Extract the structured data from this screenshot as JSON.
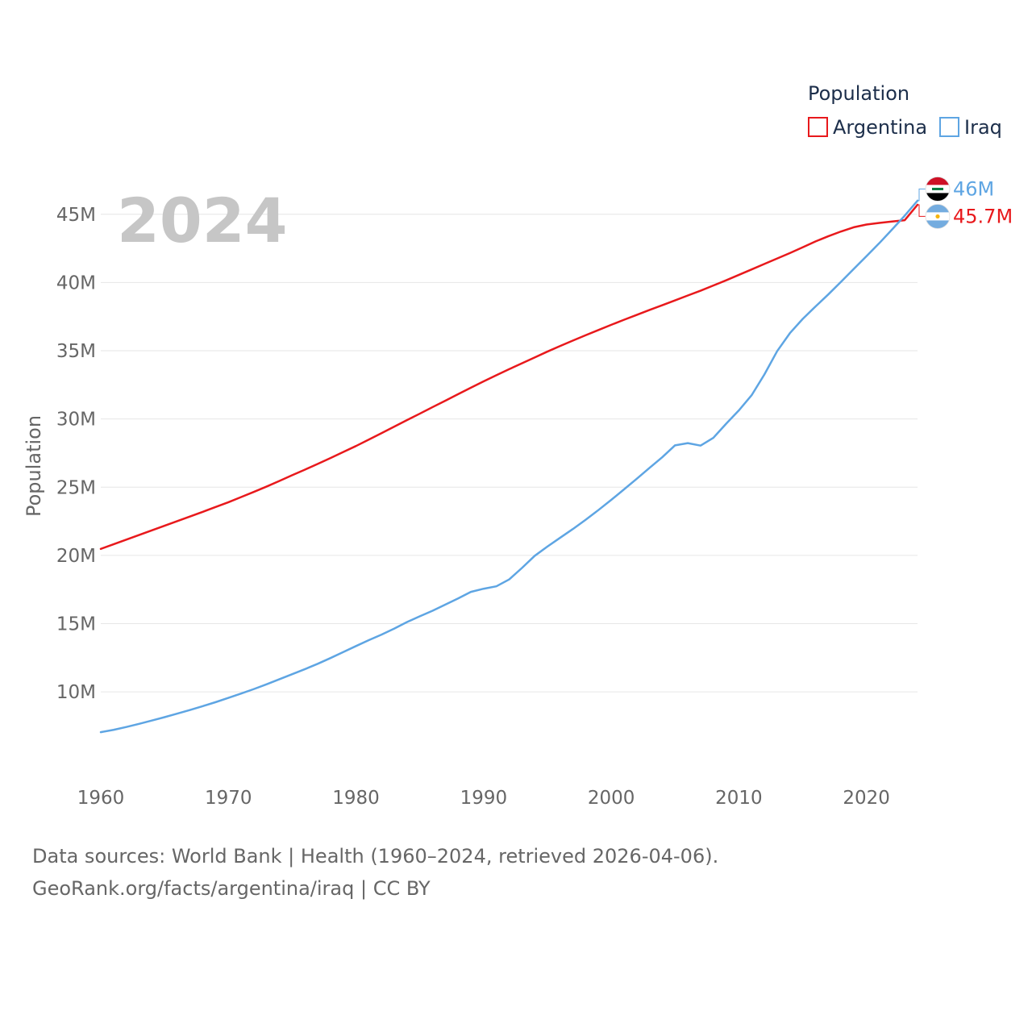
{
  "chart_data": {
    "type": "line",
    "title": "",
    "year_label": "2024",
    "xlabel": "",
    "ylabel": "Population",
    "xlim": [
      1960,
      2024
    ],
    "ylim": [
      5000000,
      47000000
    ],
    "x_ticks": [
      1960,
      1970,
      1980,
      1990,
      2000,
      2010,
      2020
    ],
    "x_tick_labels": [
      "1960",
      "1970",
      "1980",
      "1990",
      "2000",
      "2010",
      "2020"
    ],
    "y_ticks": [
      10000000,
      15000000,
      20000000,
      25000000,
      30000000,
      35000000,
      40000000,
      45000000
    ],
    "y_tick_labels": [
      "10M",
      "15M",
      "20M",
      "25M",
      "30M",
      "35M",
      "40M",
      "45M"
    ],
    "legend": {
      "title": "Population",
      "position": "top-right",
      "entries": [
        "Argentina",
        "Iraq"
      ]
    },
    "x": [
      1960,
      1961,
      1962,
      1963,
      1964,
      1965,
      1966,
      1967,
      1968,
      1969,
      1970,
      1971,
      1972,
      1973,
      1974,
      1975,
      1976,
      1977,
      1978,
      1979,
      1980,
      1981,
      1982,
      1983,
      1984,
      1985,
      1986,
      1987,
      1988,
      1989,
      1990,
      1991,
      1992,
      1993,
      1994,
      1995,
      1996,
      1997,
      1998,
      1999,
      2000,
      2001,
      2002,
      2003,
      2004,
      2005,
      2006,
      2007,
      2008,
      2009,
      2010,
      2011,
      2012,
      2013,
      2014,
      2015,
      2016,
      2017,
      2018,
      2019,
      2020,
      2021,
      2022,
      2023,
      2024
    ],
    "series": [
      {
        "name": "Argentina",
        "color": "#e8191c",
        "end_label": "45.7M",
        "flag": "argentina-flag-icon",
        "values": [
          20480000,
          20820000,
          21160000,
          21500000,
          21840000,
          22180000,
          22520000,
          22860000,
          23200000,
          23550000,
          23900000,
          24280000,
          24660000,
          25050000,
          25460000,
          25880000,
          26290000,
          26710000,
          27140000,
          27580000,
          28020000,
          28490000,
          28960000,
          29440000,
          29920000,
          30390000,
          30870000,
          31340000,
          31820000,
          32290000,
          32760000,
          33210000,
          33650000,
          34080000,
          34510000,
          34940000,
          35350000,
          35750000,
          36140000,
          36520000,
          36900000,
          37270000,
          37630000,
          37990000,
          38340000,
          38690000,
          39050000,
          39400000,
          39780000,
          40160000,
          40560000,
          40960000,
          41360000,
          41760000,
          42160000,
          42580000,
          43010000,
          43390000,
          43740000,
          44050000,
          44250000,
          44370000,
          44470000,
          44570000,
          45700000
        ]
      },
      {
        "name": "Iraq",
        "color": "#5ea5e3",
        "end_label": "46M",
        "flag": "iraq-flag-icon",
        "values": [
          7050000,
          7220000,
          7430000,
          7660000,
          7900000,
          8150000,
          8410000,
          8680000,
          8960000,
          9250000,
          9560000,
          9880000,
          10210000,
          10560000,
          10930000,
          11300000,
          11670000,
          12060000,
          12480000,
          12920000,
          13360000,
          13790000,
          14200000,
          14640000,
          15120000,
          15540000,
          15950000,
          16400000,
          16850000,
          17330000,
          17560000,
          17740000,
          18240000,
          19080000,
          19970000,
          20650000,
          21300000,
          21940000,
          22620000,
          23330000,
          24070000,
          24840000,
          25620000,
          26420000,
          27200000,
          28070000,
          28230000,
          28050000,
          28620000,
          29650000,
          30630000,
          31740000,
          33260000,
          34970000,
          36290000,
          37330000,
          38240000,
          39120000,
          40050000,
          40990000,
          41930000,
          42880000,
          43880000,
          44900000,
          46000000
        ]
      }
    ]
  },
  "footer": {
    "line1": "Data sources: World Bank | Health (1960–2024, retrieved 2026-04-06).",
    "line2": "GeoRank.org/facts/argentina/iraq | CC BY"
  }
}
